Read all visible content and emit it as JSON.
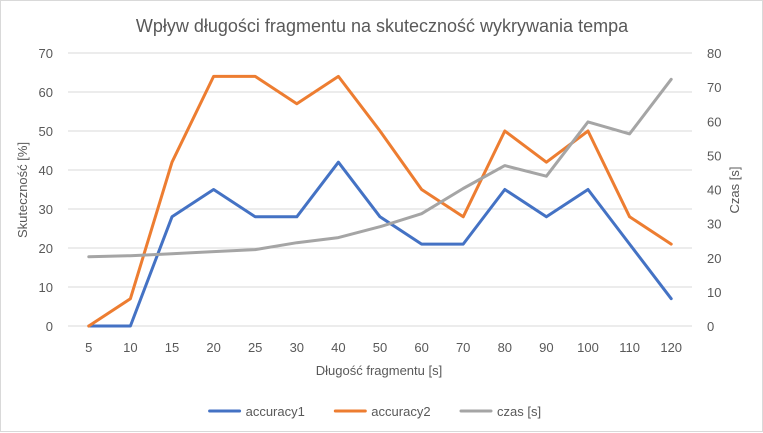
{
  "chart_data": {
    "type": "line",
    "title": "Wpływ długości fragmentu na skuteczność wykrywania tempa",
    "xlabel": "Długość fragmentu [s]",
    "ylabel": "Skuteczność [%]",
    "y2label": "Czas [s]",
    "categories": [
      "5",
      "10",
      "15",
      "20",
      "25",
      "30",
      "40",
      "50",
      "60",
      "70",
      "80",
      "90",
      "100",
      "110",
      "120"
    ],
    "ylim": [
      0,
      70
    ],
    "yticks": [
      0,
      10,
      20,
      30,
      40,
      50,
      60,
      70
    ],
    "y2lim": [
      0,
      80
    ],
    "y2ticks": [
      0,
      10,
      20,
      30,
      40,
      50,
      60,
      70,
      80
    ],
    "grid": true,
    "legend": "bottom",
    "series": [
      {
        "name": "accuracy1",
        "axis": "left",
        "color": "#4472C4",
        "values": [
          0,
          0,
          28,
          35,
          28,
          28,
          42,
          28,
          21,
          21,
          35,
          28,
          35,
          21,
          7
        ]
      },
      {
        "name": "accuracy2",
        "axis": "left",
        "color": "#ED7D31",
        "values": [
          0,
          7,
          42,
          64,
          64,
          57,
          64,
          50,
          35,
          28,
          50,
          42,
          50,
          28,
          21
        ]
      },
      {
        "name": "czas [s]",
        "axis": "right",
        "color": "#A5A5A5",
        "values": [
          20.3,
          20.6,
          21.2,
          21.8,
          22.4,
          24.4,
          25.9,
          29.1,
          32.9,
          40.3,
          47.0,
          43.9,
          59.8,
          56.3,
          72.3
        ]
      }
    ]
  }
}
